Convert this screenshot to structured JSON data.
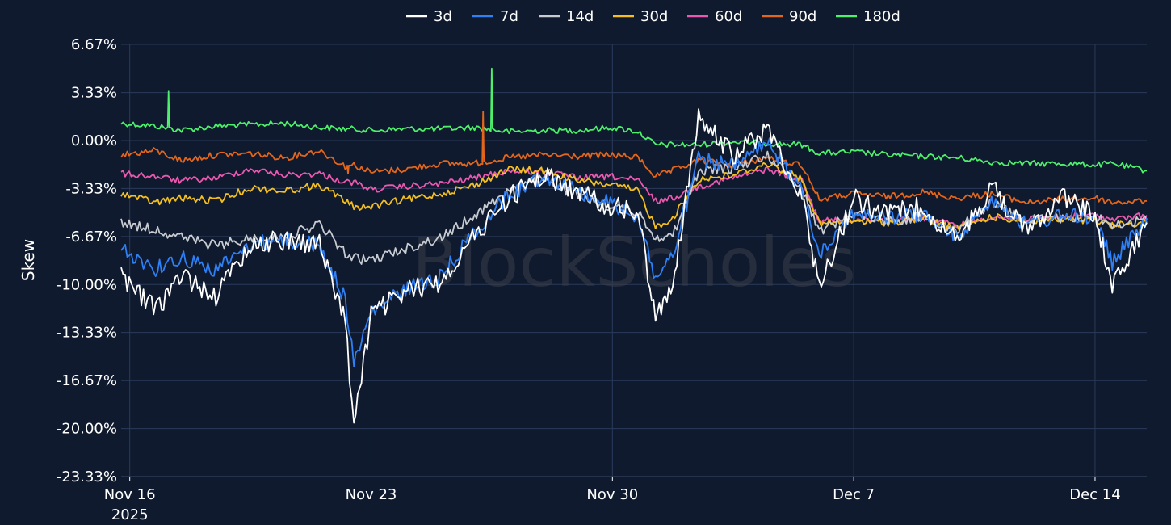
{
  "chart_data": {
    "type": "line",
    "ylabel": "Skew",
    "watermark": "BlockScholes",
    "y_ticks": [
      "6.67%",
      "3.33%",
      "0.00%",
      "-3.33%",
      "-6.67%",
      "-10.00%",
      "-13.33%",
      "-16.67%",
      "-20.00%",
      "-23.33%"
    ],
    "ylim": [
      -23.33,
      6.67
    ],
    "x_ticks": [
      {
        "label": "Nov 16",
        "sub": "2025",
        "date": "2025-11-16"
      },
      {
        "label": "Nov 23",
        "sub": "",
        "date": "2025-11-23"
      },
      {
        "label": "Nov 30",
        "sub": "",
        "date": "2025-11-30"
      },
      {
        "label": "Dec 7",
        "sub": "",
        "date": "2025-12-07"
      },
      {
        "label": "Dec 14",
        "sub": "",
        "date": "2025-12-14"
      }
    ],
    "xlim": [
      "2025-11-15T18:00",
      "2025-12-15T12:00"
    ],
    "grid": true,
    "legend_position": "top-center",
    "x": [
      "2025-11-15T18:00",
      "2025-11-16T18:00",
      "2025-11-17T12:00",
      "2025-11-18T12:00",
      "2025-11-19T12:00",
      "2025-11-20T12:00",
      "2025-11-21T12:00",
      "2025-11-22T06:00",
      "2025-11-22T12:00",
      "2025-11-23T00:00",
      "2025-11-24T00:00",
      "2025-11-25T00:00",
      "2025-11-26T00:00",
      "2025-11-27T00:00",
      "2025-11-28T00:00",
      "2025-11-29T00:00",
      "2025-11-30T00:00",
      "2025-11-30T18:00",
      "2025-12-01T06:00",
      "2025-12-01T18:00",
      "2025-12-02T12:00",
      "2025-12-03T12:00",
      "2025-12-04T12:00",
      "2025-12-05T12:00",
      "2025-12-06T00:00",
      "2025-12-07T00:00",
      "2025-12-08T00:00",
      "2025-12-09T00:00",
      "2025-12-10T00:00",
      "2025-12-11T00:00",
      "2025-12-12T00:00",
      "2025-12-13T00:00",
      "2025-12-14T00:00",
      "2025-12-14T12:00",
      "2025-12-15T12:00"
    ],
    "series": [
      {
        "name": "3d",
        "color": "#ffffff",
        "values": [
          -9.5,
          -11.8,
          -9.3,
          -10.8,
          -7.2,
          -6.9,
          -7.2,
          -12.5,
          -19.8,
          -12.1,
          -10.5,
          -9.8,
          -6.7,
          -3.9,
          -2.4,
          -3.6,
          -4.6,
          -5.1,
          -12.5,
          -9.8,
          1.5,
          -1.0,
          0.8,
          -3.9,
          -10.2,
          -4.0,
          -5.2,
          -4.5,
          -7.1,
          -3.2,
          -6.4,
          -3.8,
          -5.1,
          -10.3,
          -5.7
        ]
      },
      {
        "name": "7d",
        "color": "#2f7ff5",
        "values": [
          -7.5,
          -8.9,
          -8.1,
          -9.0,
          -7.2,
          -6.9,
          -7.3,
          -11.0,
          -15.5,
          -12.0,
          -10.3,
          -9.5,
          -6.3,
          -3.8,
          -2.4,
          -3.5,
          -4.4,
          -5.3,
          -9.6,
          -8.0,
          -1.3,
          -1.8,
          -0.2,
          -3.5,
          -7.8,
          -5.0,
          -5.4,
          -5.1,
          -6.8,
          -4.0,
          -5.9,
          -5.2,
          -5.3,
          -8.5,
          -5.4
        ]
      },
      {
        "name": "14d",
        "color": "#c8ccd2",
        "values": [
          -5.7,
          -6.2,
          -6.7,
          -7.3,
          -6.8,
          -6.7,
          -5.8,
          -7.8,
          -8.2,
          -8.3,
          -7.5,
          -6.8,
          -5.2,
          -3.4,
          -2.6,
          -3.9,
          -4.6,
          -5.0,
          -6.7,
          -6.6,
          -2.1,
          -1.9,
          -1.0,
          -3.3,
          -6.3,
          -5.0,
          -5.6,
          -5.3,
          -6.2,
          -4.3,
          -5.5,
          -5.4,
          -5.3,
          -5.9,
          -5.5
        ]
      },
      {
        "name": "30d",
        "color": "#f4bf1f",
        "values": [
          -3.7,
          -4.3,
          -4.0,
          -4.2,
          -3.3,
          -3.5,
          -3.1,
          -4.2,
          -4.6,
          -4.6,
          -4.1,
          -3.7,
          -3.1,
          -2.0,
          -2.1,
          -2.8,
          -3.1,
          -3.5,
          -6.0,
          -5.4,
          -2.7,
          -2.4,
          -1.6,
          -2.7,
          -5.8,
          -5.6,
          -5.7,
          -5.4,
          -6.1,
          -5.3,
          -5.6,
          -5.5,
          -5.6,
          -5.9,
          -5.7
        ]
      },
      {
        "name": "60d",
        "color": "#ec58b0",
        "values": [
          -2.3,
          -2.5,
          -2.8,
          -2.6,
          -2.0,
          -2.4,
          -2.3,
          -2.9,
          -2.9,
          -3.4,
          -3.2,
          -3.0,
          -2.6,
          -2.1,
          -2.2,
          -2.6,
          -2.5,
          -2.8,
          -4.2,
          -4.0,
          -3.2,
          -2.6,
          -2.0,
          -2.8,
          -5.6,
          -5.5,
          -5.5,
          -5.4,
          -5.9,
          -5.3,
          -5.5,
          -5.3,
          -5.2,
          -5.5,
          -5.2
        ]
      },
      {
        "name": "90d",
        "color": "#e4661b",
        "values": [
          -1.0,
          -0.7,
          -1.4,
          -1.0,
          -0.9,
          -1.2,
          -0.7,
          -1.8,
          -1.7,
          -2.2,
          -2.0,
          -1.6,
          -1.6,
          -1.2,
          -1.0,
          -1.1,
          -1.0,
          -1.2,
          -2.5,
          -2.1,
          -1.4,
          -1.7,
          -1.2,
          -1.7,
          -4.1,
          -3.7,
          -3.9,
          -3.6,
          -4.0,
          -3.7,
          -4.3,
          -4.1,
          -4.0,
          -4.3,
          -4.2
        ]
      },
      {
        "name": "180d",
        "color": "#4df06a",
        "values": [
          1.2,
          1.0,
          0.7,
          1.0,
          1.1,
          1.2,
          0.9,
          0.8,
          0.8,
          0.7,
          0.8,
          0.8,
          0.9,
          0.6,
          0.7,
          0.7,
          0.9,
          0.6,
          -0.3,
          -0.3,
          -0.3,
          -0.1,
          -0.2,
          -0.3,
          -0.9,
          -0.8,
          -1.0,
          -1.1,
          -1.2,
          -1.5,
          -1.6,
          -1.6,
          -1.7,
          -1.6,
          -2.1
        ]
      }
    ],
    "spikes": [
      {
        "series": "180d",
        "x": "2025-11-17T03:00",
        "value": 3.4
      },
      {
        "series": "180d",
        "x": "2025-11-26T12:00",
        "value": 5.0
      },
      {
        "series": "90d",
        "x": "2025-11-22T08:00",
        "value": -2.3
      },
      {
        "series": "90d",
        "x": "2025-11-26T06:00",
        "value": 2.0
      }
    ]
  }
}
